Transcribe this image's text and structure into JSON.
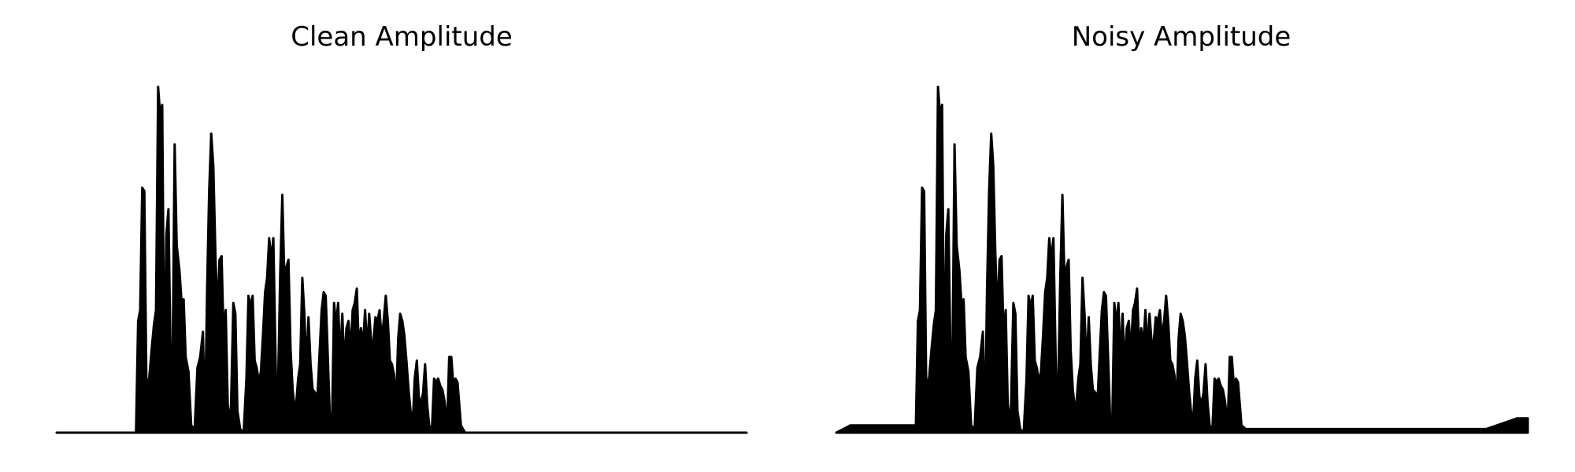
{
  "chart_data": [
    {
      "type": "line",
      "title": "Clean Amplitude",
      "xlabel": "",
      "ylabel": "",
      "axes_visible": false,
      "grid": false,
      "color": "#000000",
      "ylim": [
        0,
        1
      ],
      "envelope": [
        [
          0.0,
          0.0
        ],
        [
          0.115,
          0.0
        ],
        [
          0.118,
          0.31
        ],
        [
          0.121,
          0.34
        ],
        [
          0.124,
          0.68
        ],
        [
          0.127,
          0.67
        ],
        [
          0.13,
          0.14
        ],
        [
          0.134,
          0.15
        ],
        [
          0.138,
          0.24
        ],
        [
          0.141,
          0.3
        ],
        [
          0.144,
          0.34
        ],
        [
          0.147,
          0.96
        ],
        [
          0.15,
          0.88
        ],
        [
          0.153,
          0.91
        ],
        [
          0.156,
          0.14
        ],
        [
          0.159,
          0.55
        ],
        [
          0.162,
          0.62
        ],
        [
          0.165,
          0.22
        ],
        [
          0.168,
          0.2
        ],
        [
          0.171,
          0.8
        ],
        [
          0.174,
          0.52
        ],
        [
          0.178,
          0.45
        ],
        [
          0.181,
          0.36
        ],
        [
          0.184,
          0.37
        ],
        [
          0.187,
          0.21
        ],
        [
          0.191,
          0.17
        ],
        [
          0.195,
          0.02
        ],
        [
          0.2,
          0.01
        ],
        [
          0.204,
          0.18
        ],
        [
          0.208,
          0.21
        ],
        [
          0.212,
          0.28
        ],
        [
          0.215,
          0.02
        ],
        [
          0.218,
          0.4
        ],
        [
          0.221,
          0.67
        ],
        [
          0.224,
          0.83
        ],
        [
          0.227,
          0.74
        ],
        [
          0.23,
          0.5
        ],
        [
          0.233,
          0.32
        ],
        [
          0.236,
          0.48
        ],
        [
          0.239,
          0.49
        ],
        [
          0.242,
          0.26
        ],
        [
          0.245,
          0.34
        ],
        [
          0.248,
          0.08
        ],
        [
          0.252,
          0.02
        ],
        [
          0.256,
          0.36
        ],
        [
          0.259,
          0.33
        ],
        [
          0.262,
          0.06
        ],
        [
          0.266,
          0.01
        ],
        [
          0.271,
          0.0
        ],
        [
          0.275,
          0.15
        ],
        [
          0.278,
          0.38
        ],
        [
          0.281,
          0.35
        ],
        [
          0.284,
          0.38
        ],
        [
          0.287,
          0.2
        ],
        [
          0.29,
          0.18
        ],
        [
          0.293,
          0.14
        ],
        [
          0.296,
          0.17
        ],
        [
          0.299,
          0.27
        ],
        [
          0.302,
          0.39
        ],
        [
          0.305,
          0.43
        ],
        [
          0.308,
          0.54
        ],
        [
          0.311,
          0.48
        ],
        [
          0.314,
          0.54
        ],
        [
          0.318,
          0.13
        ],
        [
          0.321,
          0.14
        ],
        [
          0.324,
          0.44
        ],
        [
          0.327,
          0.66
        ],
        [
          0.33,
          0.43
        ],
        [
          0.333,
          0.46
        ],
        [
          0.336,
          0.48
        ],
        [
          0.339,
          0.23
        ],
        [
          0.342,
          0.12
        ],
        [
          0.346,
          0.05
        ],
        [
          0.35,
          0.15
        ],
        [
          0.353,
          0.19
        ],
        [
          0.356,
          0.43
        ],
        [
          0.359,
          0.33
        ],
        [
          0.362,
          0.18
        ],
        [
          0.365,
          0.32
        ],
        [
          0.368,
          0.19
        ],
        [
          0.371,
          0.12
        ],
        [
          0.375,
          0.11
        ],
        [
          0.378,
          0.1
        ],
        [
          0.381,
          0.22
        ],
        [
          0.384,
          0.34
        ],
        [
          0.387,
          0.39
        ],
        [
          0.39,
          0.38
        ],
        [
          0.393,
          0.21
        ],
        [
          0.396,
          0.04
        ],
        [
          0.399,
          0.01
        ],
        [
          0.402,
          0.36
        ],
        [
          0.405,
          0.3
        ],
        [
          0.408,
          0.36
        ],
        [
          0.411,
          0.2
        ],
        [
          0.414,
          0.33
        ],
        [
          0.417,
          0.18
        ],
        [
          0.42,
          0.29
        ],
        [
          0.423,
          0.31
        ],
        [
          0.426,
          0.22
        ],
        [
          0.429,
          0.34
        ],
        [
          0.432,
          0.36
        ],
        [
          0.435,
          0.4
        ],
        [
          0.438,
          0.23
        ],
        [
          0.441,
          0.29
        ],
        [
          0.444,
          0.24
        ],
        [
          0.447,
          0.34
        ],
        [
          0.45,
          0.23
        ],
        [
          0.453,
          0.33
        ],
        [
          0.456,
          0.25
        ],
        [
          0.459,
          0.25
        ],
        [
          0.462,
          0.32
        ],
        [
          0.465,
          0.31
        ],
        [
          0.468,
          0.34
        ],
        [
          0.471,
          0.26
        ],
        [
          0.474,
          0.31
        ],
        [
          0.477,
          0.38
        ],
        [
          0.48,
          0.31
        ],
        [
          0.483,
          0.2
        ],
        [
          0.486,
          0.19
        ],
        [
          0.489,
          0.16
        ],
        [
          0.492,
          0.08
        ],
        [
          0.495,
          0.26
        ],
        [
          0.498,
          0.33
        ],
        [
          0.501,
          0.31
        ],
        [
          0.504,
          0.27
        ],
        [
          0.507,
          0.2
        ],
        [
          0.51,
          0.12
        ],
        [
          0.513,
          0.06
        ],
        [
          0.516,
          0.02
        ],
        [
          0.519,
          0.15
        ],
        [
          0.522,
          0.2
        ],
        [
          0.525,
          0.1
        ],
        [
          0.528,
          0.08
        ],
        [
          0.531,
          0.11
        ],
        [
          0.534,
          0.19
        ],
        [
          0.537,
          0.08
        ],
        [
          0.54,
          0.02
        ],
        [
          0.544,
          0.01
        ],
        [
          0.547,
          0.15
        ],
        [
          0.55,
          0.14
        ],
        [
          0.553,
          0.15
        ],
        [
          0.556,
          0.13
        ],
        [
          0.559,
          0.12
        ],
        [
          0.562,
          0.09
        ],
        [
          0.566,
          0.02
        ],
        [
          0.569,
          0.21
        ],
        [
          0.572,
          0.21
        ],
        [
          0.575,
          0.13
        ],
        [
          0.578,
          0.15
        ],
        [
          0.581,
          0.14
        ],
        [
          0.586,
          0.02
        ],
        [
          0.592,
          0.0
        ],
        [
          1.0,
          0.0
        ]
      ]
    },
    {
      "type": "line",
      "title": "Noisy Amplitude",
      "xlabel": "",
      "ylabel": "",
      "axes_visible": false,
      "grid": false,
      "color": "#000000",
      "ylim": [
        0,
        1
      ],
      "envelope": [
        [
          0.0,
          0.0
        ],
        [
          0.01,
          0.01
        ],
        [
          0.02,
          0.02
        ],
        [
          0.04,
          0.02
        ],
        [
          0.06,
          0.02
        ],
        [
          0.08,
          0.02
        ],
        [
          0.115,
          0.02
        ],
        [
          0.118,
          0.31
        ],
        [
          0.121,
          0.34
        ],
        [
          0.124,
          0.68
        ],
        [
          0.127,
          0.67
        ],
        [
          0.13,
          0.14
        ],
        [
          0.134,
          0.15
        ],
        [
          0.138,
          0.24
        ],
        [
          0.141,
          0.3
        ],
        [
          0.144,
          0.34
        ],
        [
          0.147,
          0.96
        ],
        [
          0.15,
          0.88
        ],
        [
          0.153,
          0.91
        ],
        [
          0.156,
          0.14
        ],
        [
          0.159,
          0.55
        ],
        [
          0.162,
          0.62
        ],
        [
          0.165,
          0.22
        ],
        [
          0.168,
          0.2
        ],
        [
          0.171,
          0.8
        ],
        [
          0.174,
          0.52
        ],
        [
          0.178,
          0.45
        ],
        [
          0.181,
          0.36
        ],
        [
          0.184,
          0.37
        ],
        [
          0.187,
          0.21
        ],
        [
          0.191,
          0.17
        ],
        [
          0.195,
          0.02
        ],
        [
          0.2,
          0.01
        ],
        [
          0.204,
          0.18
        ],
        [
          0.208,
          0.21
        ],
        [
          0.212,
          0.28
        ],
        [
          0.215,
          0.02
        ],
        [
          0.218,
          0.4
        ],
        [
          0.221,
          0.67
        ],
        [
          0.224,
          0.83
        ],
        [
          0.227,
          0.74
        ],
        [
          0.23,
          0.5
        ],
        [
          0.233,
          0.32
        ],
        [
          0.236,
          0.48
        ],
        [
          0.239,
          0.49
        ],
        [
          0.242,
          0.26
        ],
        [
          0.245,
          0.34
        ],
        [
          0.248,
          0.08
        ],
        [
          0.252,
          0.02
        ],
        [
          0.256,
          0.36
        ],
        [
          0.259,
          0.33
        ],
        [
          0.262,
          0.06
        ],
        [
          0.266,
          0.01
        ],
        [
          0.271,
          0.0
        ],
        [
          0.275,
          0.15
        ],
        [
          0.278,
          0.38
        ],
        [
          0.281,
          0.35
        ],
        [
          0.284,
          0.38
        ],
        [
          0.287,
          0.2
        ],
        [
          0.29,
          0.18
        ],
        [
          0.293,
          0.14
        ],
        [
          0.296,
          0.17
        ],
        [
          0.299,
          0.27
        ],
        [
          0.302,
          0.39
        ],
        [
          0.305,
          0.43
        ],
        [
          0.308,
          0.54
        ],
        [
          0.311,
          0.48
        ],
        [
          0.314,
          0.54
        ],
        [
          0.318,
          0.13
        ],
        [
          0.321,
          0.14
        ],
        [
          0.324,
          0.44
        ],
        [
          0.327,
          0.66
        ],
        [
          0.33,
          0.43
        ],
        [
          0.333,
          0.46
        ],
        [
          0.336,
          0.48
        ],
        [
          0.339,
          0.23
        ],
        [
          0.342,
          0.12
        ],
        [
          0.346,
          0.05
        ],
        [
          0.35,
          0.15
        ],
        [
          0.353,
          0.19
        ],
        [
          0.356,
          0.43
        ],
        [
          0.359,
          0.33
        ],
        [
          0.362,
          0.18
        ],
        [
          0.365,
          0.32
        ],
        [
          0.368,
          0.19
        ],
        [
          0.371,
          0.12
        ],
        [
          0.375,
          0.11
        ],
        [
          0.378,
          0.1
        ],
        [
          0.381,
          0.22
        ],
        [
          0.384,
          0.34
        ],
        [
          0.387,
          0.39
        ],
        [
          0.39,
          0.38
        ],
        [
          0.393,
          0.21
        ],
        [
          0.396,
          0.04
        ],
        [
          0.399,
          0.01
        ],
        [
          0.402,
          0.36
        ],
        [
          0.405,
          0.3
        ],
        [
          0.408,
          0.36
        ],
        [
          0.411,
          0.2
        ],
        [
          0.414,
          0.33
        ],
        [
          0.417,
          0.18
        ],
        [
          0.42,
          0.29
        ],
        [
          0.423,
          0.31
        ],
        [
          0.426,
          0.22
        ],
        [
          0.429,
          0.34
        ],
        [
          0.432,
          0.36
        ],
        [
          0.435,
          0.4
        ],
        [
          0.438,
          0.23
        ],
        [
          0.441,
          0.29
        ],
        [
          0.444,
          0.24
        ],
        [
          0.447,
          0.34
        ],
        [
          0.45,
          0.23
        ],
        [
          0.453,
          0.33
        ],
        [
          0.456,
          0.25
        ],
        [
          0.459,
          0.25
        ],
        [
          0.462,
          0.32
        ],
        [
          0.465,
          0.31
        ],
        [
          0.468,
          0.34
        ],
        [
          0.471,
          0.26
        ],
        [
          0.474,
          0.31
        ],
        [
          0.477,
          0.38
        ],
        [
          0.48,
          0.31
        ],
        [
          0.483,
          0.2
        ],
        [
          0.486,
          0.19
        ],
        [
          0.489,
          0.16
        ],
        [
          0.492,
          0.08
        ],
        [
          0.495,
          0.26
        ],
        [
          0.498,
          0.33
        ],
        [
          0.501,
          0.31
        ],
        [
          0.504,
          0.27
        ],
        [
          0.507,
          0.2
        ],
        [
          0.51,
          0.12
        ],
        [
          0.513,
          0.06
        ],
        [
          0.516,
          0.02
        ],
        [
          0.519,
          0.15
        ],
        [
          0.522,
          0.2
        ],
        [
          0.525,
          0.1
        ],
        [
          0.528,
          0.08
        ],
        [
          0.531,
          0.11
        ],
        [
          0.534,
          0.19
        ],
        [
          0.537,
          0.08
        ],
        [
          0.54,
          0.02
        ],
        [
          0.544,
          0.01
        ],
        [
          0.547,
          0.15
        ],
        [
          0.55,
          0.14
        ],
        [
          0.553,
          0.15
        ],
        [
          0.556,
          0.13
        ],
        [
          0.559,
          0.12
        ],
        [
          0.562,
          0.09
        ],
        [
          0.566,
          0.02
        ],
        [
          0.569,
          0.21
        ],
        [
          0.572,
          0.21
        ],
        [
          0.575,
          0.13
        ],
        [
          0.578,
          0.15
        ],
        [
          0.581,
          0.14
        ],
        [
          0.586,
          0.02
        ],
        [
          0.592,
          0.01
        ],
        [
          0.62,
          0.01
        ],
        [
          0.66,
          0.01
        ],
        [
          0.7,
          0.01
        ],
        [
          0.74,
          0.01
        ],
        [
          0.78,
          0.01
        ],
        [
          0.82,
          0.01
        ],
        [
          0.86,
          0.01
        ],
        [
          0.9,
          0.01
        ],
        [
          0.94,
          0.01
        ],
        [
          0.97,
          0.03
        ],
        [
          0.985,
          0.04
        ],
        [
          1.0,
          0.04
        ]
      ]
    }
  ]
}
